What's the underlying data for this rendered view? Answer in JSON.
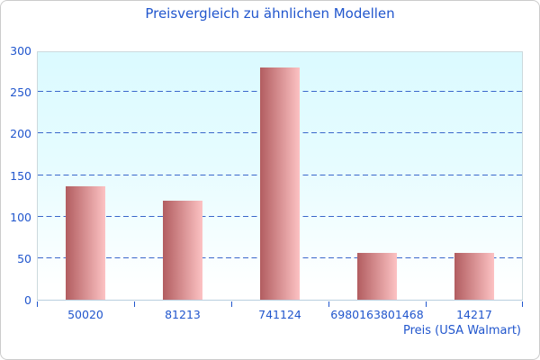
{
  "chart_data": {
    "type": "bar",
    "title": "Preisvergleich zu ähnlichen Modellen",
    "xlabel": "Preis (USA Walmart)",
    "ylabel": "",
    "categories": [
      "50020",
      "81213",
      "741124",
      "6980163801468",
      "14217"
    ],
    "values": [
      136,
      119,
      279,
      56,
      56
    ],
    "ylim": [
      0,
      300
    ],
    "ytick_step": 50,
    "ytick_labels": [
      "0",
      "50",
      "100",
      "150",
      "200",
      "250",
      "300"
    ],
    "grid": "horizontal-dashed",
    "legend_position": "none"
  },
  "style": {
    "text_color": "#2156cd",
    "grid_color": "#3a67cb",
    "tick_color": "#2156cd",
    "plot_border_color": "#ccd9dd",
    "plot_bg_top": "#dbfaff",
    "plot_bg_bottom": "#ffffff",
    "bar_gradient_left": "#b25d60",
    "bar_gradient_right": "#fcc2c3",
    "page_border_color": "#cccccc",
    "page_background": "#ffffff"
  }
}
